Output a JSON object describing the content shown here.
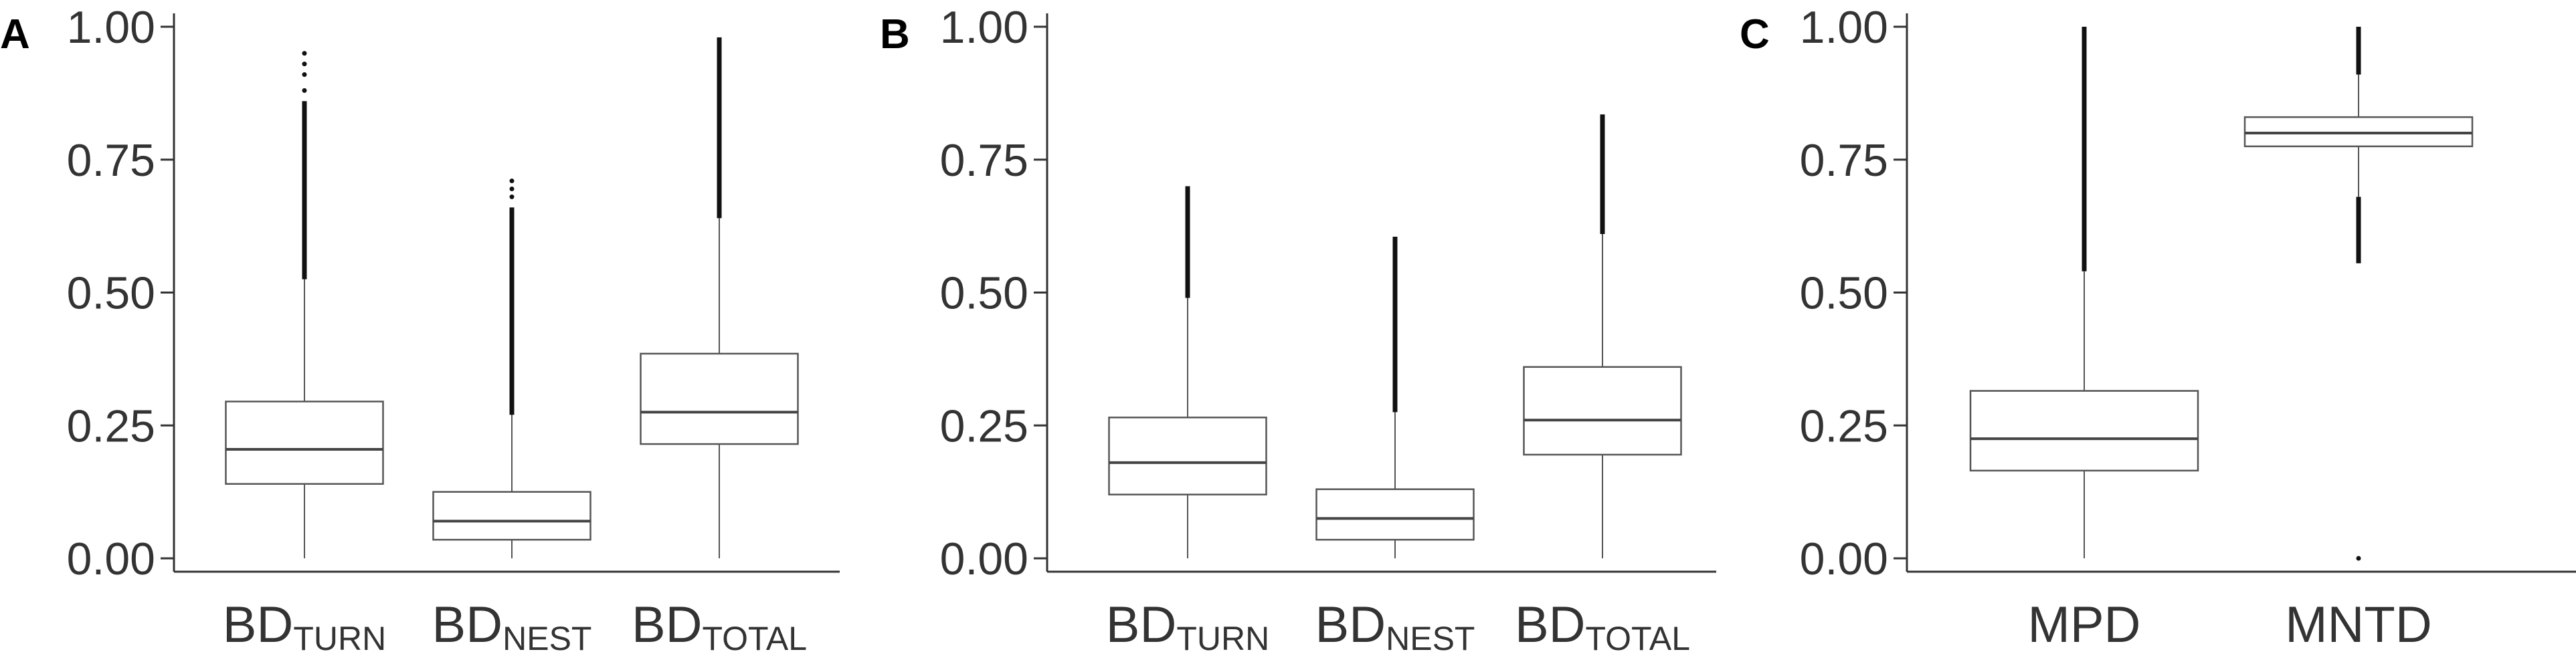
{
  "chart_data": [
    {
      "type": "box",
      "panel_label": "A",
      "ylim": [
        0,
        1
      ],
      "y_ticks": [
        "0.00",
        "0.25",
        "0.50",
        "0.75",
        "1.00"
      ],
      "y_tick_values": [
        0,
        0.25,
        0.5,
        0.75,
        1.0
      ],
      "grid": false,
      "categories": [
        {
          "main": "BD",
          "sub": "TURN"
        },
        {
          "main": "BD",
          "sub": "NEST"
        },
        {
          "main": "BD",
          "sub": "TOTAL"
        }
      ],
      "boxes": [
        {
          "min": 0.0,
          "q1": 0.14,
          "median": 0.205,
          "q3": 0.295,
          "whisker_high": 0.525,
          "outliers_from": 0.525,
          "outliers_to": 0.86,
          "outliers_extra": [
            0.88,
            0.91,
            0.93,
            0.95
          ]
        },
        {
          "min": 0.0,
          "q1": 0.035,
          "median": 0.07,
          "q3": 0.125,
          "whisker_high": 0.27,
          "outliers_from": 0.27,
          "outliers_to": 0.66,
          "outliers_extra": [
            0.68,
            0.695,
            0.71
          ]
        },
        {
          "min": 0.0,
          "q1": 0.215,
          "median": 0.275,
          "q3": 0.385,
          "whisker_high": 0.64,
          "outliers_from": 0.64,
          "outliers_to": 0.98,
          "outliers_extra": []
        }
      ]
    },
    {
      "type": "box",
      "panel_label": "B",
      "ylim": [
        0,
        1
      ],
      "y_ticks": [
        "0.00",
        "0.25",
        "0.50",
        "0.75",
        "1.00"
      ],
      "y_tick_values": [
        0,
        0.25,
        0.5,
        0.75,
        1.0
      ],
      "grid": false,
      "categories": [
        {
          "main": "BD",
          "sub": "TURN"
        },
        {
          "main": "BD",
          "sub": "NEST"
        },
        {
          "main": "BD",
          "sub": "TOTAL"
        }
      ],
      "boxes": [
        {
          "min": 0.0,
          "q1": 0.12,
          "median": 0.18,
          "q3": 0.265,
          "whisker_high": 0.49,
          "outliers_from": 0.49,
          "outliers_to": 0.7,
          "outliers_extra": []
        },
        {
          "min": 0.0,
          "q1": 0.035,
          "median": 0.075,
          "q3": 0.13,
          "whisker_high": 0.275,
          "outliers_from": 0.275,
          "outliers_to": 0.605,
          "outliers_extra": []
        },
        {
          "min": 0.0,
          "q1": 0.195,
          "median": 0.26,
          "q3": 0.36,
          "whisker_high": 0.61,
          "outliers_from": 0.61,
          "outliers_to": 0.835,
          "outliers_extra": []
        }
      ]
    },
    {
      "type": "box",
      "panel_label": "C",
      "ylim": [
        0,
        1
      ],
      "y_ticks": [
        "0.00",
        "0.25",
        "0.50",
        "0.75",
        "1.00"
      ],
      "y_tick_values": [
        0,
        0.25,
        0.5,
        0.75,
        1.0
      ],
      "grid": false,
      "categories": [
        {
          "main": "MPD",
          "sub": ""
        },
        {
          "main": "MNTD",
          "sub": ""
        }
      ],
      "boxes": [
        {
          "min": 0.0,
          "q1": 0.165,
          "median": 0.225,
          "q3": 0.315,
          "whisker_high": 0.54,
          "outliers_from": 0.54,
          "outliers_to": 1.0,
          "outliers_extra": []
        },
        {
          "min": 0.68,
          "q1": 0.775,
          "median": 0.8,
          "q3": 0.83,
          "whisker_high": 0.91,
          "outliers_from": 0.91,
          "outliers_to": 1.0,
          "outliers_extra": [],
          "outliers_low_from": 0.555,
          "outliers_low_to": 0.68,
          "outliers_single": [
            0.0
          ]
        }
      ]
    }
  ]
}
